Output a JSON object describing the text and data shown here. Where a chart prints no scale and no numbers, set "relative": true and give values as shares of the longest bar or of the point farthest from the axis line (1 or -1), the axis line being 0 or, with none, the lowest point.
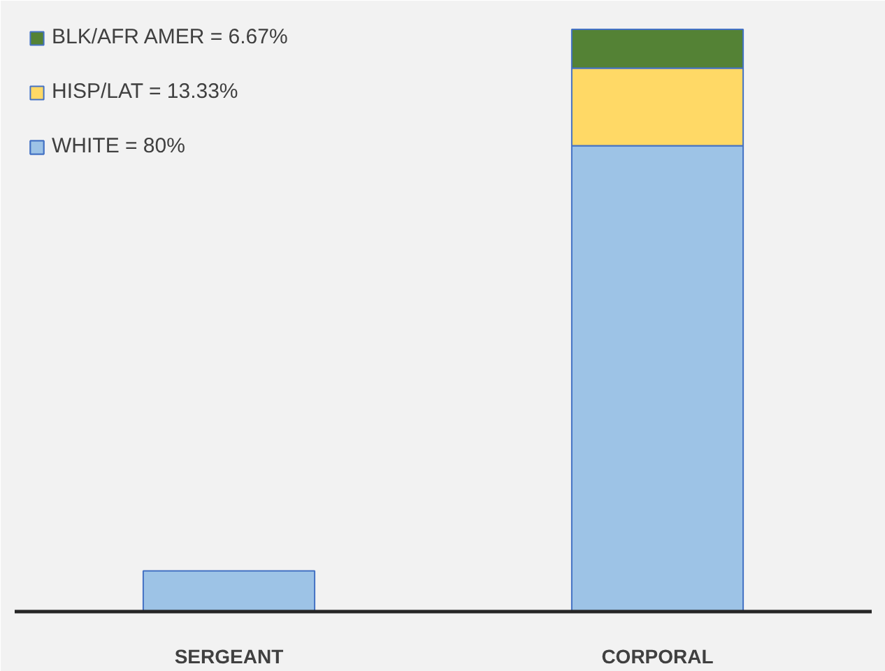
{
  "chart_data": {
    "type": "bar",
    "stacked": true,
    "relative": true,
    "categories": [
      "SERGEANT",
      "CORPORAL"
    ],
    "series": [
      {
        "name": "WHITE = 80%",
        "color": "#9dc3e6",
        "values": [
          0.07,
          0.8
        ]
      },
      {
        "name": "HISP/LAT = 13.33%",
        "color": "#ffd966",
        "values": [
          null,
          0.1333
        ]
      },
      {
        "name": "BLK/AFR AMER = 6.67%",
        "color": "#548235",
        "values": [
          null,
          0.0667
        ]
      }
    ],
    "legend": "top left",
    "grid": false
  }
}
